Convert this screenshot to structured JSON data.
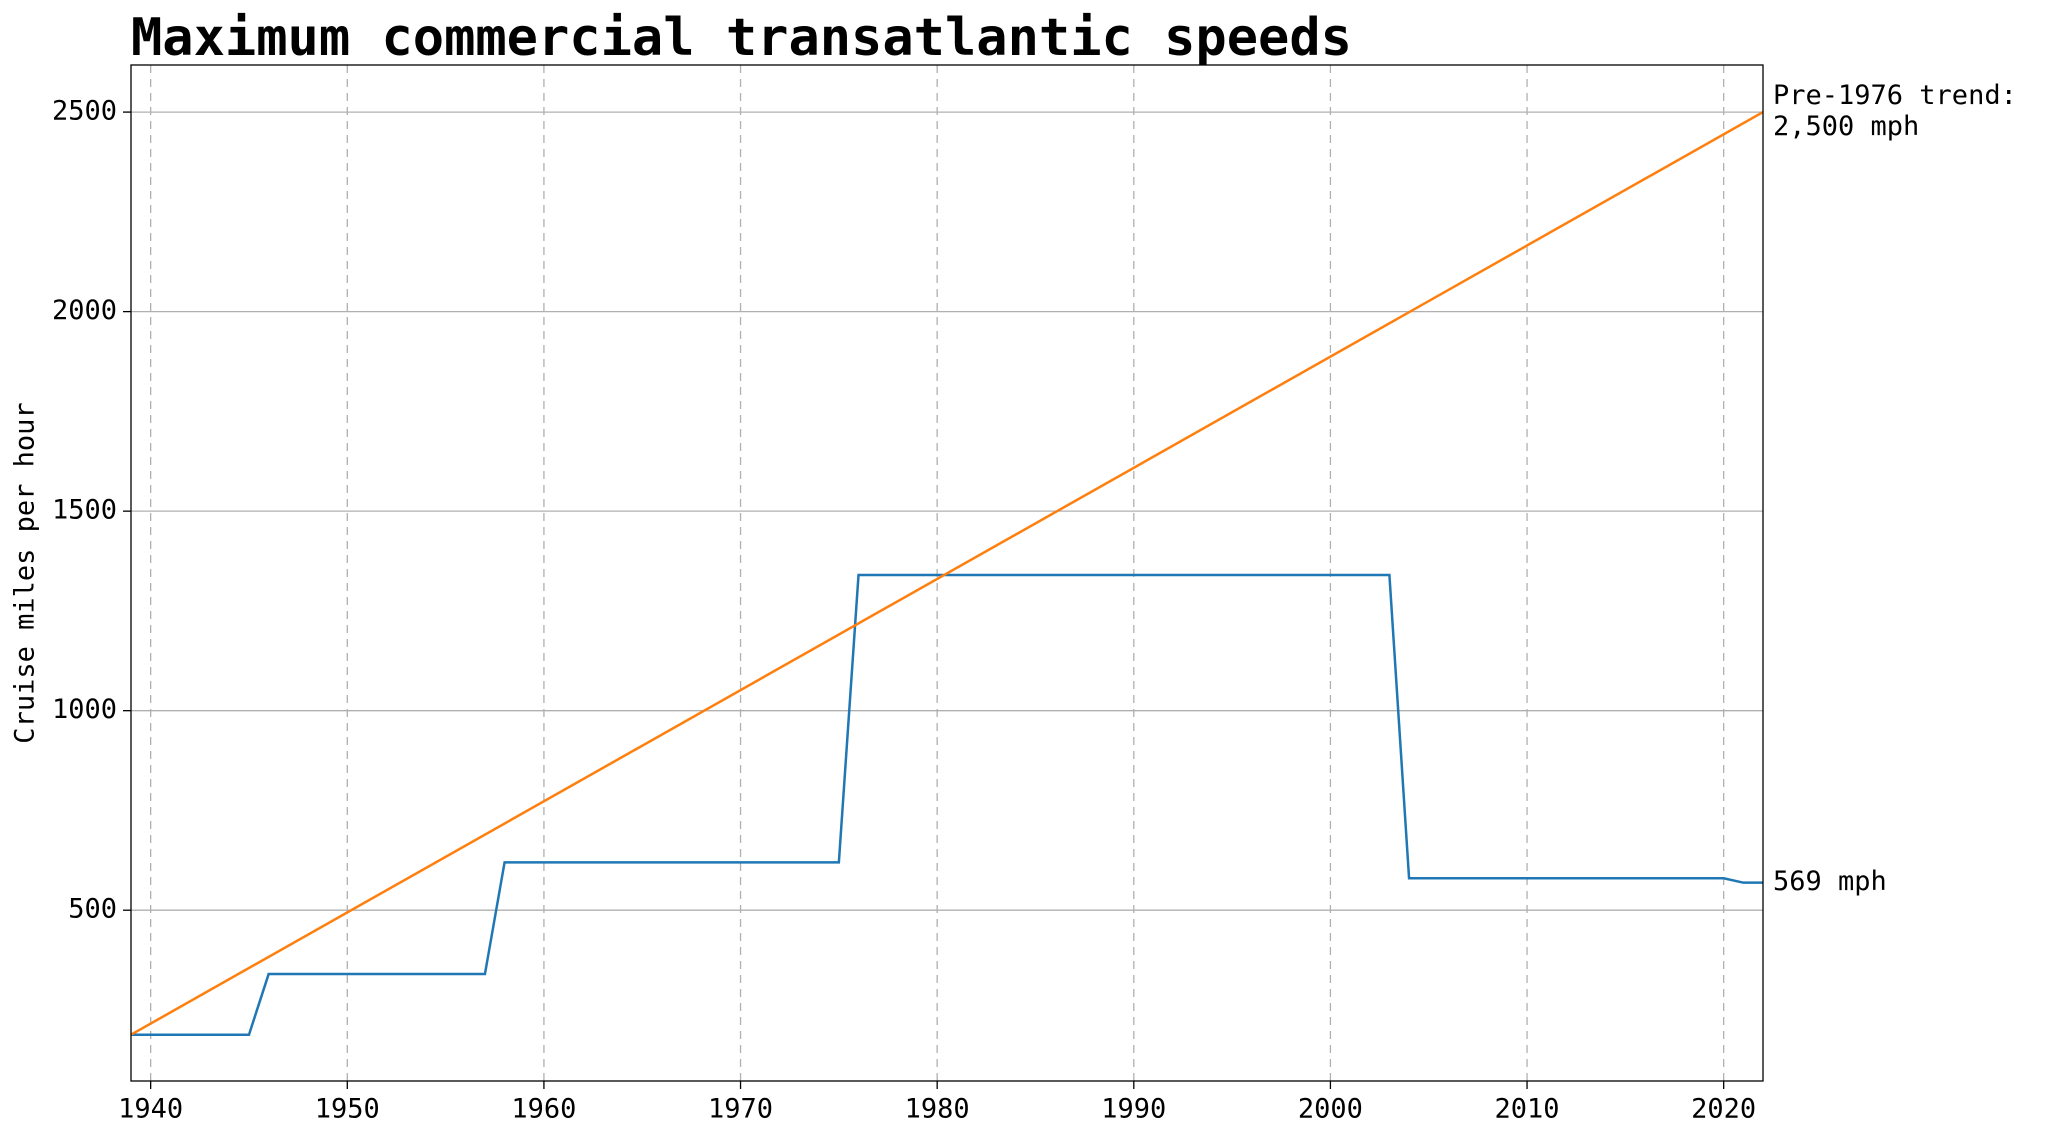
{
  "chart_data": {
    "type": "line",
    "title": "Maximum commercial transatlantic speeds",
    "y_label": "Cruise miles per hour",
    "xlim": [
      1939,
      2022
    ],
    "xticks": [
      1940,
      1950,
      1960,
      1970,
      1980,
      1990,
      2000,
      2010,
      2020
    ],
    "ylim": [
      72,
      2618
    ],
    "yticks": [
      500,
      1000,
      1500,
      2000,
      2500
    ],
    "x_grid": "dashed",
    "y_grid": "solid",
    "series": [
      {
        "color": "#1f77b4",
        "x": [
          1939,
          1945,
          1946,
          1957,
          1958,
          1975,
          1976,
          2003,
          2004,
          2020,
          2021,
          2022
        ],
        "values": [
          188,
          188,
          340,
          340,
          620,
          620,
          1340,
          1340,
          580,
          580,
          569,
          569
        ],
        "label": [
          "569 mph"
        ]
      },
      {
        "color": "#ff7f0e",
        "x": [
          1939,
          2022
        ],
        "values": [
          188,
          2500
        ],
        "label": [
          "Pre-1976 trend:",
          "2,500 mph"
        ]
      }
    ]
  }
}
